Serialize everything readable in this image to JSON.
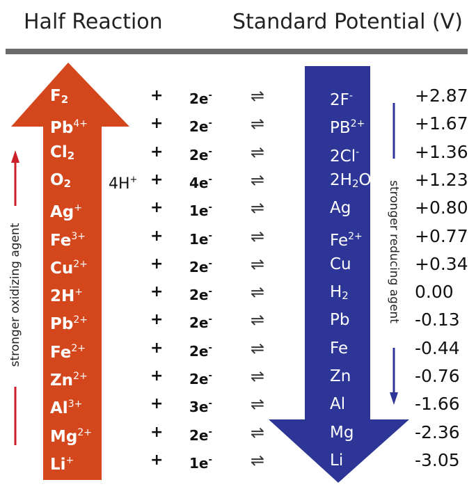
{
  "header": {
    "left_title": "Half Reaction",
    "right_title": "Standard Potential (V)"
  },
  "side_labels": {
    "oxidizing": "stronger oxidizing agent",
    "reducing": "stronger reducing agent"
  },
  "colors": {
    "oxidizer_arrow": "#d4471c",
    "reducer_arrow": "#2d3597",
    "indicator_red": "#cc1f2a",
    "indicator_blue": "#2d3597",
    "rule": "#6b6b6b"
  },
  "rows": [
    {
      "ox_base": "F",
      "ox_sup": "",
      "ox_sub": "2",
      "coef": "",
      "coef_sup": "",
      "plus": "+",
      "electrons": "2e",
      "electron_sup": "-",
      "arrow": "⇌",
      "red_base": "2F",
      "red_sup": "-",
      "red_sub": "",
      "red_tail": "",
      "potential": "+2.87"
    },
    {
      "ox_base": "Pb",
      "ox_sup": "4+",
      "ox_sub": "",
      "coef": "",
      "coef_sup": "",
      "plus": "+",
      "electrons": "2e",
      "electron_sup": "-",
      "arrow": "⇌",
      "red_base": "PB",
      "red_sup": "2+",
      "red_sub": "",
      "red_tail": "",
      "potential": "+1.67"
    },
    {
      "ox_base": "Cl",
      "ox_sup": "",
      "ox_sub": "2",
      "coef": "",
      "coef_sup": "",
      "plus": "+",
      "electrons": "2e",
      "electron_sup": "-",
      "arrow": "⇌",
      "red_base": "2Cl",
      "red_sup": "-",
      "red_sub": "",
      "red_tail": "",
      "potential": "+1.36"
    },
    {
      "ox_base": "O",
      "ox_sup": "",
      "ox_sub": "2",
      "coef": "4H",
      "coef_sup": "+",
      "plus": "+",
      "electrons": "4e",
      "electron_sup": "-",
      "arrow": "⇌",
      "red_base": "2H",
      "red_sup": "",
      "red_sub": "2",
      "red_tail": "O",
      "potential": "+1.23"
    },
    {
      "ox_base": "Ag",
      "ox_sup": "+",
      "ox_sub": "",
      "coef": "",
      "coef_sup": "",
      "plus": "+",
      "electrons": "1e",
      "electron_sup": "-",
      "arrow": "⇌",
      "red_base": "Ag",
      "red_sup": "",
      "red_sub": "",
      "red_tail": "",
      "potential": "+0.80"
    },
    {
      "ox_base": "Fe",
      "ox_sup": "3+",
      "ox_sub": "",
      "coef": "",
      "coef_sup": "",
      "plus": "+",
      "electrons": "1e",
      "electron_sup": "-",
      "arrow": "⇌",
      "red_base": "Fe",
      "red_sup": "2+",
      "red_sub": "",
      "red_tail": "",
      "potential": "+0.77"
    },
    {
      "ox_base": "Cu",
      "ox_sup": "2+",
      "ox_sub": "",
      "coef": "",
      "coef_sup": "",
      "plus": "+",
      "electrons": "2e",
      "electron_sup": "-",
      "arrow": "⇌",
      "red_base": "Cu",
      "red_sup": "",
      "red_sub": "",
      "red_tail": "",
      "potential": "+0.34"
    },
    {
      "ox_base": "2H",
      "ox_sup": "+",
      "ox_sub": "",
      "coef": "",
      "coef_sup": "",
      "plus": "+",
      "electrons": "2e",
      "electron_sup": "-",
      "arrow": "⇌",
      "red_base": "H",
      "red_sup": "",
      "red_sub": "2",
      "red_tail": "",
      "potential": "0.00"
    },
    {
      "ox_base": "Pb",
      "ox_sup": "2+",
      "ox_sub": "",
      "coef": "",
      "coef_sup": "",
      "plus": "+",
      "electrons": "2e",
      "electron_sup": "-",
      "arrow": "⇌",
      "red_base": "Pb",
      "red_sup": "",
      "red_sub": "",
      "red_tail": "",
      "potential": "-0.13"
    },
    {
      "ox_base": "Fe",
      "ox_sup": "2+",
      "ox_sub": "",
      "coef": "",
      "coef_sup": "",
      "plus": "+",
      "electrons": "2e",
      "electron_sup": "-",
      "arrow": "⇌",
      "red_base": "Fe",
      "red_sup": "",
      "red_sub": "",
      "red_tail": "",
      "potential": "-0.44"
    },
    {
      "ox_base": "Zn",
      "ox_sup": "2+",
      "ox_sub": "",
      "coef": "",
      "coef_sup": "",
      "plus": "+",
      "electrons": "2e",
      "electron_sup": "-",
      "arrow": "⇌",
      "red_base": "Zn",
      "red_sup": "",
      "red_sub": "",
      "red_tail": "",
      "potential": "-0.76"
    },
    {
      "ox_base": "Al",
      "ox_sup": "3+",
      "ox_sub": "",
      "coef": "",
      "coef_sup": "",
      "plus": "+",
      "electrons": "3e",
      "electron_sup": "-",
      "arrow": "⇌",
      "red_base": "Al",
      "red_sup": "",
      "red_sub": "",
      "red_tail": "",
      "potential": "-1.66"
    },
    {
      "ox_base": "Mg",
      "ox_sup": "2+",
      "ox_sub": "",
      "coef": "",
      "coef_sup": "",
      "plus": "+",
      "electrons": "2e",
      "electron_sup": "-",
      "arrow": "⇌",
      "red_base": "Mg",
      "red_sup": "",
      "red_sub": "",
      "red_tail": "",
      "potential": "-2.36"
    },
    {
      "ox_base": "Li",
      "ox_sup": "+",
      "ox_sub": "",
      "coef": "",
      "coef_sup": "",
      "plus": "+",
      "electrons": "1e",
      "electron_sup": "-",
      "arrow": "⇌",
      "red_base": "Li",
      "red_sup": "",
      "red_sub": "",
      "red_tail": "",
      "potential": "-3.05"
    }
  ]
}
